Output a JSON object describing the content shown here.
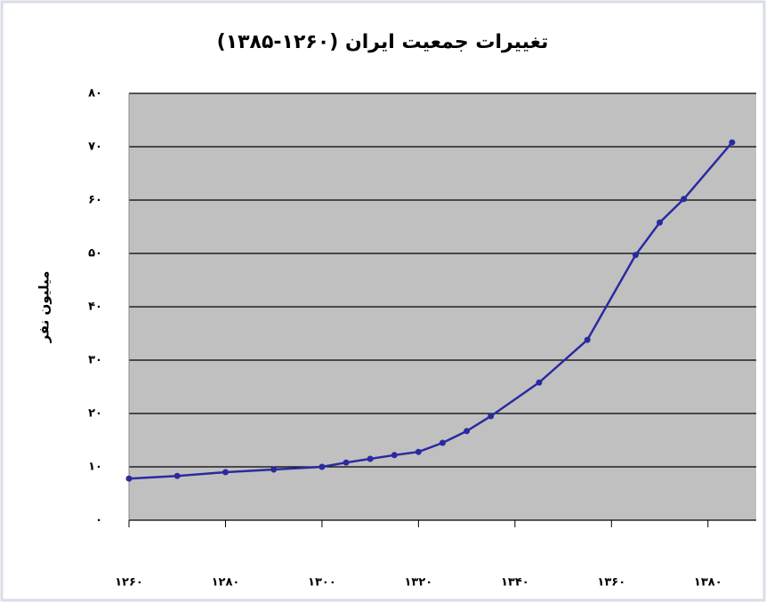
{
  "chart_data": {
    "type": "line",
    "title": "تغییرات جمعیت ایران (۱۲۶۰-۱۳۸۵)",
    "y_label": "میلیون نفر",
    "x": [
      1260,
      1270,
      1280,
      1290,
      1300,
      1305,
      1310,
      1315,
      1320,
      1325,
      1330,
      1335,
      1345,
      1355,
      1365,
      1370,
      1375,
      1385
    ],
    "series": [
      {
        "color": "#2a2aa0",
        "values": [
          7.8,
          8.3,
          9.0,
          9.5,
          10.0,
          10.8,
          11.5,
          12.2,
          12.8,
          14.5,
          16.7,
          19.5,
          25.8,
          33.8,
          49.7,
          55.8,
          60.2,
          70.8
        ]
      }
    ],
    "xlim": [
      1260,
      1390
    ],
    "xticks": [
      {
        "value": 1260,
        "label": "۱۲۶۰"
      },
      {
        "value": 1280,
        "label": "۱۲۸۰"
      },
      {
        "value": 1300,
        "label": "۱۳۰۰"
      },
      {
        "value": 1320,
        "label": "۱۳۲۰"
      },
      {
        "value": 1340,
        "label": "۱۳۴۰"
      },
      {
        "value": 1360,
        "label": "۱۳۶۰"
      },
      {
        "value": 1380,
        "label": "۱۳۸۰"
      }
    ],
    "ylim": [
      0,
      80
    ],
    "yticks": [
      {
        "value": 0,
        "label": "۰"
      },
      {
        "value": 10,
        "label": "۱۰"
      },
      {
        "value": 20,
        "label": "۲۰"
      },
      {
        "value": 30,
        "label": "۳۰"
      },
      {
        "value": 40,
        "label": "۴۰"
      },
      {
        "value": 50,
        "label": "۵۰"
      },
      {
        "value": 60,
        "label": "۶۰"
      },
      {
        "value": 70,
        "label": "۷۰"
      },
      {
        "value": 80,
        "label": "۸۰"
      }
    ],
    "grid": true,
    "plot_background": "#c0c0c0"
  }
}
